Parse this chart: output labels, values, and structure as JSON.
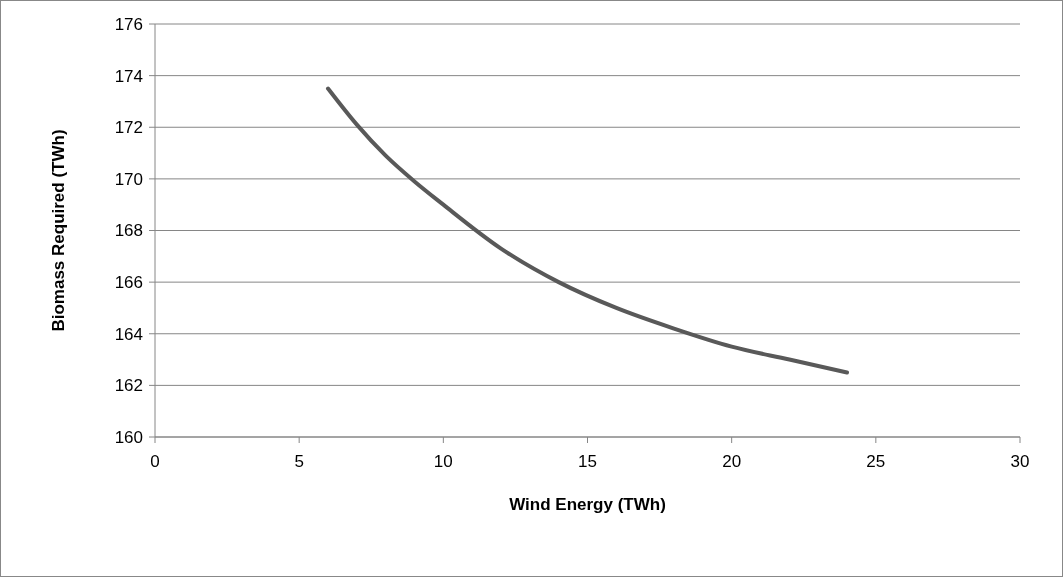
{
  "chart_data": {
    "type": "line",
    "xlabel": "Wind Energy (TWh)",
    "ylabel": "Biomass Required (TWh)",
    "x": [
      6,
      7,
      8,
      9,
      10,
      12,
      14,
      16,
      18,
      20,
      22,
      24
    ],
    "series": [
      {
        "color": "#595959",
        "values": [
          173.5,
          172.1,
          170.9,
          169.9,
          169.0,
          167.3,
          166.0,
          165.0,
          164.2,
          163.5,
          163.0,
          162.5
        ]
      }
    ],
    "xlim": [
      0,
      30
    ],
    "xticks": [
      0,
      5,
      10,
      15,
      20,
      25,
      30
    ],
    "ylim": [
      160,
      176
    ],
    "yticks": [
      160,
      162,
      164,
      166,
      168,
      170,
      172,
      174,
      176
    ],
    "grid": "y",
    "marker": "none",
    "line_style": "solid"
  }
}
